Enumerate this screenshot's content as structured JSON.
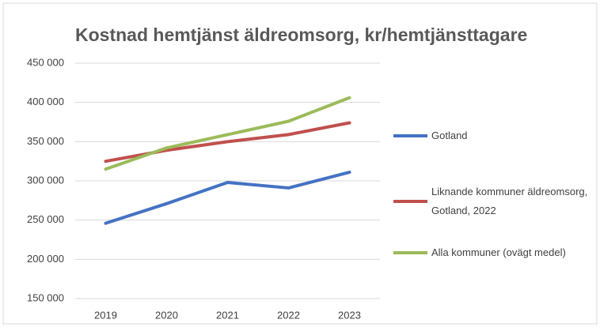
{
  "chart_data": {
    "type": "line",
    "title": "Kostnad hemtjänst äldreomsorg, kr/hemtjänsttagare",
    "categories": [
      "2019",
      "2020",
      "2021",
      "2022",
      "2023"
    ],
    "series": [
      {
        "name": "Gotland",
        "color": "#4472c4",
        "values": [
          246000,
          271000,
          298000,
          291000,
          311000
        ]
      },
      {
        "name": "Liknande kommuner äldreomsorg, Gotland, 2022",
        "color": "#c0504d",
        "values": [
          325000,
          339000,
          350000,
          359000,
          374000
        ]
      },
      {
        "name": "Alla kommuner (ovägt medel)",
        "color": "#9bbb59",
        "values": [
          315000,
          342000,
          359000,
          376000,
          406000
        ]
      }
    ],
    "ylim": [
      150000,
      450000
    ],
    "yticks": [
      {
        "value": 150000,
        "label": "150 000"
      },
      {
        "value": 200000,
        "label": "200 000"
      },
      {
        "value": 250000,
        "label": "250 000"
      },
      {
        "value": 300000,
        "label": "300 000"
      },
      {
        "value": 350000,
        "label": "350 000"
      },
      {
        "value": 400000,
        "label": "400 000"
      },
      {
        "value": 450000,
        "label": "450 000"
      }
    ],
    "grid": true,
    "legend": "right"
  }
}
